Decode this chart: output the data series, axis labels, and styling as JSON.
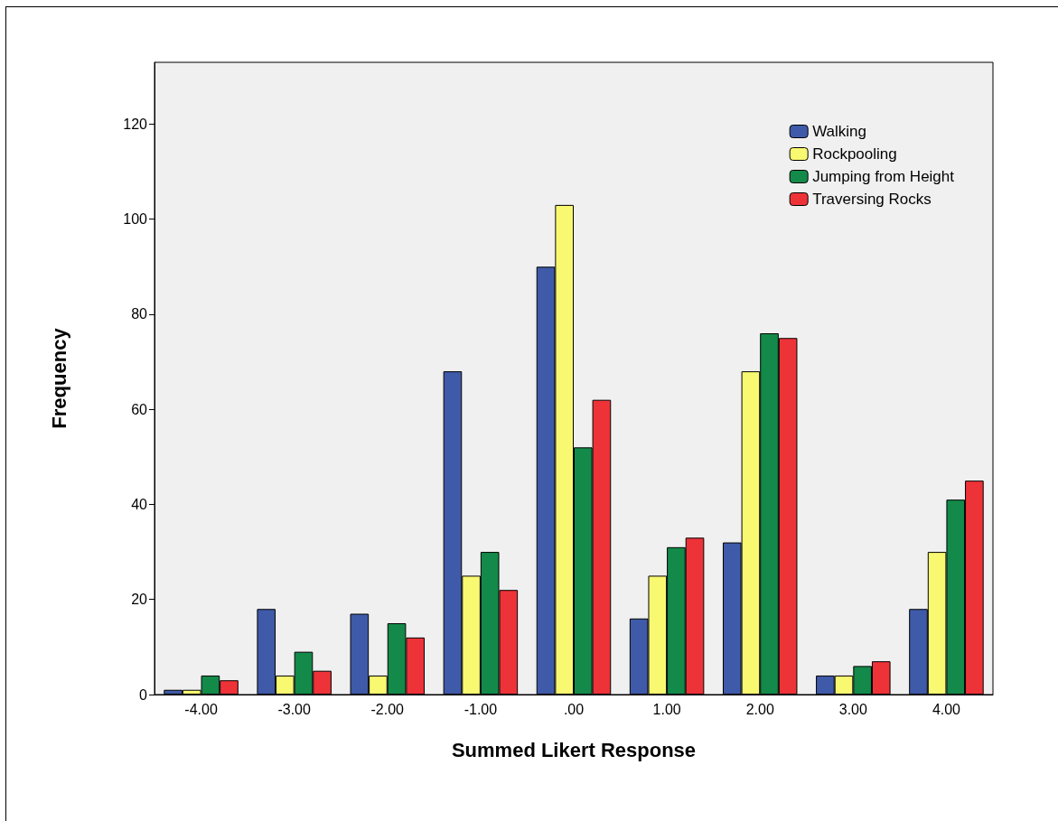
{
  "chart_data": {
    "type": "bar",
    "xlabel": "Summed Likert Response",
    "ylabel": "Frequency",
    "categories": [
      "-4.00",
      "-3.00",
      "-2.00",
      "-1.00",
      ".00",
      "1.00",
      "2.00",
      "3.00",
      "4.00"
    ],
    "series": [
      {
        "name": "Walking",
        "color": "#3f5aa8",
        "values": [
          1,
          18,
          17,
          68,
          90,
          16,
          32,
          4,
          18
        ]
      },
      {
        "name": "Rockpooling",
        "color": "#f9f871",
        "values": [
          1,
          4,
          4,
          25,
          103,
          25,
          68,
          4,
          30
        ]
      },
      {
        "name": "Jumping from Height",
        "color": "#138a4a",
        "values": [
          4,
          9,
          15,
          30,
          52,
          31,
          76,
          6,
          41
        ]
      },
      {
        "name": "Traversing Rocks",
        "color": "#ee3338",
        "values": [
          3,
          5,
          12,
          22,
          62,
          33,
          75,
          7,
          45
        ]
      }
    ],
    "ylim": [
      0,
      133
    ],
    "yticks": [
      0,
      20,
      40,
      60,
      80,
      100,
      120
    ],
    "grid": false,
    "legend": "top right"
  }
}
